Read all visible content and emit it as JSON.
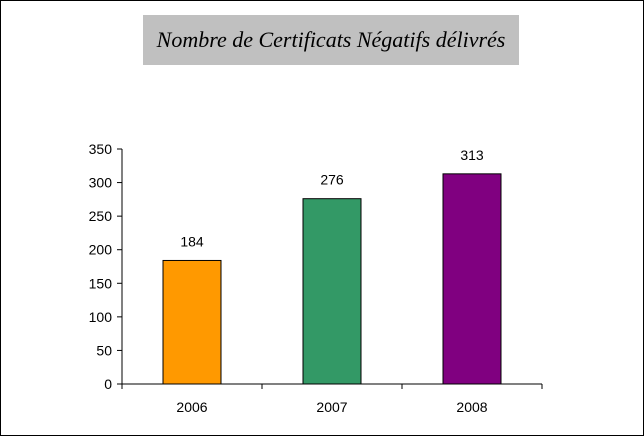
{
  "chart_data": {
    "type": "bar",
    "title": "Nombre de Certificats Négatifs délivrés",
    "categories": [
      "2006",
      "2007",
      "2008"
    ],
    "values": [
      184,
      276,
      313
    ],
    "data_labels": [
      "184",
      "276",
      "313"
    ],
    "bar_colors": [
      "#ff9900",
      "#339966",
      "#800080"
    ],
    "ylim": [
      0,
      350
    ],
    "yticks": [
      0,
      50,
      100,
      150,
      200,
      250,
      300,
      350
    ],
    "ytick_labels": [
      "0",
      "50",
      "100",
      "150",
      "200",
      "250",
      "300",
      "350"
    ],
    "xlabel": "",
    "ylabel": "",
    "grid": false,
    "legend": "none"
  }
}
